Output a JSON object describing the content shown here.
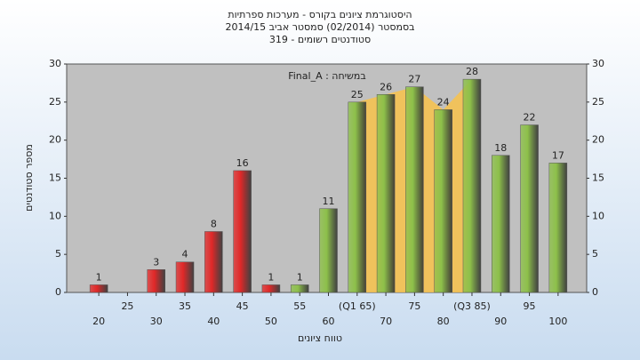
{
  "chart_data": {
    "type": "bar",
    "title_lines": [
      "היסטוגרמת ציונים בקורס - מערכות ספרתיות",
      "בסמסטר  (02/2014)  סמסטר אביב 2014/15",
      "319 - סטודנטים רשומים"
    ],
    "annotation": "Final_A : במשיחה",
    "x_label": "טווח ציונים",
    "y_label": "מספר סטודנטים",
    "categories": [
      "20",
      "25",
      "30",
      "35",
      "40",
      "45",
      "50",
      "55",
      "60",
      "(Q1 65)",
      "70",
      "75",
      "80",
      "(Q3 85)",
      "90",
      "95",
      "100"
    ],
    "values": [
      1,
      null,
      3,
      4,
      8,
      16,
      1,
      1,
      11,
      25,
      26,
      27,
      24,
      28,
      18,
      22,
      17
    ],
    "colors": [
      "#e02828",
      "#e02828",
      "#e02828",
      "#e02828",
      "#e02828",
      "#e02828",
      "#e02828",
      "#8dc04a",
      "#8dc04a",
      "#8dc04a",
      "#8dc04a",
      "#8dc04a",
      "#8dc04a",
      "#8dc04a",
      "#8dc04a",
      "#8dc04a",
      "#8dc04a"
    ],
    "highlight_color": "#f8c24a",
    "ylim": [
      0,
      30
    ],
    "yticks": [
      0,
      5,
      10,
      15,
      20,
      25,
      30
    ],
    "y2lim": [
      0,
      30
    ],
    "y2ticks": [
      0,
      5,
      10,
      15,
      20,
      25,
      30
    ],
    "grid": false
  }
}
